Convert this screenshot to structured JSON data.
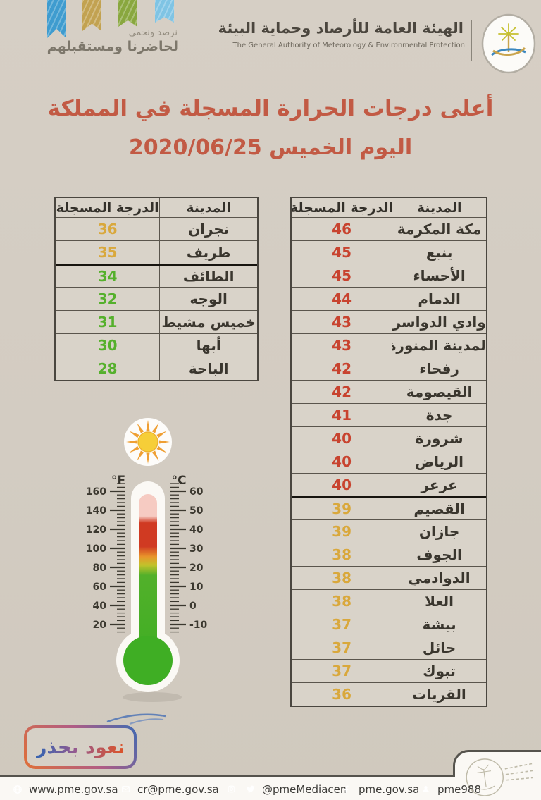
{
  "header": {
    "tagline_small": "نرصد ونحمي",
    "tagline_large": "لحاضرنا ومستقبلهم",
    "org_name_ar": "الهيئة العامة للأرصاد وحماية البيئة",
    "org_name_en": "The General Authority of Meteorology & Environmental Protection",
    "ribbon_colors": [
      "#3f9ccf",
      "#c2a251",
      "#89a73f",
      "#7fc4e4"
    ]
  },
  "title": {
    "line1": "أعلى درجات الحرارة المسجلة في المملكة",
    "line2": "اليوم الخميس 2020/06/25"
  },
  "tables": {
    "columns": {
      "city": "المدينة",
      "temp": "الدرجة المسجلة"
    },
    "primary": {
      "divider_after": 11,
      "rows": [
        {
          "city": "مكة المكرمة",
          "temp": "46",
          "level": "red"
        },
        {
          "city": "ينبع",
          "temp": "45",
          "level": "red"
        },
        {
          "city": "الأحساء",
          "temp": "45",
          "level": "red"
        },
        {
          "city": "الدمام",
          "temp": "44",
          "level": "red"
        },
        {
          "city": "وادي الدواسر",
          "temp": "43",
          "level": "red"
        },
        {
          "city": "المدينة المنورة",
          "temp": "43",
          "level": "red"
        },
        {
          "city": "رفحاء",
          "temp": "42",
          "level": "red"
        },
        {
          "city": "القيصومة",
          "temp": "42",
          "level": "red"
        },
        {
          "city": "جدة",
          "temp": "41",
          "level": "red"
        },
        {
          "city": "شرورة",
          "temp": "40",
          "level": "red"
        },
        {
          "city": "الرياض",
          "temp": "40",
          "level": "red"
        },
        {
          "city": "عرعر",
          "temp": "40",
          "level": "red"
        },
        {
          "city": "القصيم",
          "temp": "39",
          "level": "amber"
        },
        {
          "city": "جازان",
          "temp": "39",
          "level": "amber"
        },
        {
          "city": "الجوف",
          "temp": "38",
          "level": "amber"
        },
        {
          "city": "الدوادمي",
          "temp": "38",
          "level": "amber"
        },
        {
          "city": "العلا",
          "temp": "38",
          "level": "amber"
        },
        {
          "city": "بيشة",
          "temp": "37",
          "level": "amber"
        },
        {
          "city": "حائل",
          "temp": "37",
          "level": "amber"
        },
        {
          "city": "تبوك",
          "temp": "37",
          "level": "amber"
        },
        {
          "city": "القريات",
          "temp": "36",
          "level": "amber"
        }
      ]
    },
    "secondary": {
      "divider_after": 1,
      "rows": [
        {
          "city": "نجران",
          "temp": "36",
          "level": "amber"
        },
        {
          "city": "طريف",
          "temp": "35",
          "level": "amber"
        },
        {
          "city": "الطائف",
          "temp": "34",
          "level": "green"
        },
        {
          "city": "الوجه",
          "temp": "32",
          "level": "green"
        },
        {
          "city": "خميس مشيط",
          "temp": "31",
          "level": "green"
        },
        {
          "city": "أبها",
          "temp": "30",
          "level": "green"
        },
        {
          "city": "الباحة",
          "temp": "28",
          "level": "green"
        }
      ]
    }
  },
  "thermometer": {
    "unit_f": "°F",
    "unit_c": "°C",
    "f_scale": [
      160,
      140,
      120,
      100,
      80,
      60,
      40,
      20
    ],
    "c_scale": [
      60,
      50,
      40,
      30,
      20,
      10,
      0,
      -10
    ]
  },
  "badge": {
    "label": "نعود بحذر"
  },
  "footer": {
    "website": {
      "text": "www.pme.gov.sa"
    },
    "email": {
      "text": "cr@pme.gov.sa"
    },
    "social": {
      "text": "@pmeMediacen"
    },
    "facebook": {
      "text": "pme.gov.sa"
    },
    "callcenter": {
      "text": "pme988"
    }
  },
  "colors": {
    "background": "#d3ccc2",
    "title": "#c25a44",
    "temp_red": "#c8432f",
    "temp_amber": "#d9a83c",
    "temp_green": "#55b02c",
    "footer_icon_blue": "#1d6fa6"
  }
}
